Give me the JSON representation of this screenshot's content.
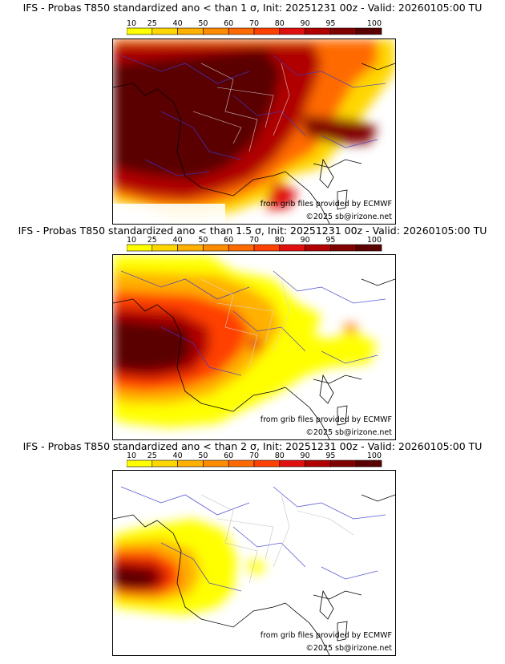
{
  "colorbar": {
    "levels": [
      "10",
      "25",
      "40",
      "50",
      "60",
      "70",
      "80",
      "90",
      "95",
      "100"
    ],
    "colors": [
      "#ffff00",
      "#ffd700",
      "#ffb000",
      "#ff8c00",
      "#ff6a00",
      "#ff4000",
      "#e01010",
      "#b00000",
      "#800000",
      "#5a0000"
    ]
  },
  "panels": [
    {
      "title": "IFS - Probas T850  standardized ano < than 1 σ, Init: 20251231 00z - Valid: 20260105:00 TU",
      "grib_credit": "from grib files provided by ECMWF",
      "copyright": "©2025 sb@irizone.net",
      "threshold_sigma": 1
    },
    {
      "title": "IFS - Probas T850  standardized ano < than 1.5 σ, Init: 20251231 00z - Valid: 20260105:00 TU",
      "grib_credit": "from grib files provided by ECMWF",
      "copyright": "©2025 sb@irizone.net",
      "threshold_sigma": 1.5
    },
    {
      "title": "IFS - Probas T850  standardized ano < than 2 σ, Init: 20251231 00z - Valid: 20260105:00 TU",
      "grib_credit": "from grib files provided by ECMWF",
      "copyright": "©2025 sb@irizone.net",
      "threshold_sigma": 2
    }
  ],
  "chart_data": [
    {
      "type": "heatmap",
      "title": "IFS - Probas T850  standardized ano < than 1 σ, Init: 20251231 00z - Valid: 20260105:00 TU",
      "colorbar_ticks": [
        10,
        25,
        40,
        50,
        60,
        70,
        80,
        90,
        95,
        100
      ],
      "units": "probability (%)",
      "summary": "Very high probability (95-100%) over most of France, high over northern Italy and Alps"
    },
    {
      "type": "heatmap",
      "title": "IFS - Probas T850  standardized ano < than 1.5 σ, Init: 20251231 00z - Valid: 20260105:00 TU",
      "colorbar_ticks": [
        10,
        25,
        40,
        50,
        60,
        70,
        80,
        90,
        95,
        100
      ],
      "units": "probability (%)",
      "summary": "Highest probability over western France, moderate over central France, low over Italy"
    },
    {
      "type": "heatmap",
      "title": "IFS - Probas T850  standardized ano < than 2 σ, Init: 20251231 00z - Valid: 20260105:00 TU",
      "colorbar_ticks": [
        10,
        25,
        40,
        50,
        60,
        70,
        80,
        90,
        95,
        100
      ],
      "units": "probability (%)",
      "summary": "High probability confined to south-western France, low elsewhere"
    }
  ]
}
